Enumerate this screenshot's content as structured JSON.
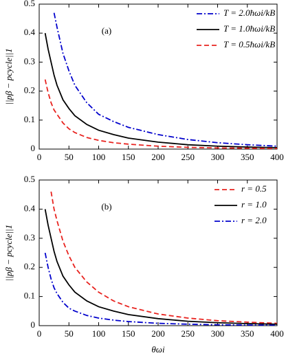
{
  "chart_data": [
    {
      "type": "line",
      "annotation": "(a)",
      "ylabel": "||pβ − pcycle||1",
      "x": [
        10,
        15,
        20,
        25,
        30,
        40,
        50,
        60,
        80,
        100,
        125,
        150,
        200,
        250,
        300,
        350,
        400
      ],
      "series": [
        {
          "name": "T = 2.0ħωi/kB",
          "color": "#0000cc",
          "linestyle": "dashdot",
          "values": [
            null,
            null,
            null,
            0.47,
            0.42,
            0.33,
            0.27,
            0.22,
            0.16,
            0.12,
            0.095,
            0.075,
            0.05,
            0.033,
            0.022,
            0.015,
            0.01
          ]
        },
        {
          "name": "T = 1.0ħωi/kB",
          "color": "#000000",
          "linestyle": "solid",
          "values": [
            0.4,
            0.345,
            0.3,
            0.255,
            0.22,
            0.17,
            0.14,
            0.115,
            0.085,
            0.065,
            0.05,
            0.038,
            0.024,
            0.015,
            0.01,
            0.007,
            0.005
          ]
        },
        {
          "name": "T = 0.5ħωi/kB",
          "color": "#e8231f",
          "linestyle": "dashed",
          "values": [
            0.24,
            0.195,
            0.16,
            0.135,
            0.12,
            0.09,
            0.07,
            0.057,
            0.04,
            0.03,
            0.022,
            0.017,
            0.01,
            0.006,
            0.004,
            0.003,
            0.002
          ]
        }
      ],
      "xlim": [
        0,
        400
      ],
      "xticks": [
        0,
        50,
        100,
        150,
        200,
        250,
        300,
        350,
        400
      ],
      "ylim": [
        0,
        0.5
      ],
      "yticks": [
        0,
        0.1,
        0.2,
        0.3,
        0.4,
        0.5
      ],
      "legend": "upper right"
    },
    {
      "type": "line",
      "annotation": "(b)",
      "ylabel": "||pβ − pcycle||1",
      "xlabel": "θωi",
      "x": [
        10,
        15,
        20,
        25,
        30,
        40,
        50,
        60,
        80,
        100,
        125,
        150,
        200,
        250,
        300,
        350,
        400
      ],
      "series": [
        {
          "name": "r = 0.5",
          "color": "#e8231f",
          "linestyle": "dashed",
          "values": [
            null,
            null,
            0.46,
            0.4,
            0.36,
            0.29,
            0.24,
            0.2,
            0.15,
            0.115,
            0.085,
            0.065,
            0.04,
            0.026,
            0.017,
            0.012,
            0.008
          ]
        },
        {
          "name": "r = 1.0",
          "color": "#000000",
          "linestyle": "solid",
          "values": [
            0.4,
            0.345,
            0.3,
            0.255,
            0.22,
            0.17,
            0.14,
            0.115,
            0.085,
            0.065,
            0.05,
            0.038,
            0.024,
            0.015,
            0.01,
            0.007,
            0.005
          ]
        },
        {
          "name": "r = 2.0",
          "color": "#0000cc",
          "linestyle": "dashdot",
          "values": [
            0.25,
            0.2,
            0.16,
            0.13,
            0.11,
            0.08,
            0.06,
            0.05,
            0.035,
            0.026,
            0.019,
            0.014,
            0.008,
            0.005,
            0.003,
            0.002,
            0.0015
          ]
        }
      ],
      "xlim": [
        0,
        400
      ],
      "xticks": [
        0,
        50,
        100,
        150,
        200,
        250,
        300,
        350,
        400
      ],
      "ylim": [
        0,
        0.5
      ],
      "yticks": [
        0,
        0.1,
        0.2,
        0.3,
        0.4,
        0.5
      ],
      "legend": "upper right"
    }
  ]
}
